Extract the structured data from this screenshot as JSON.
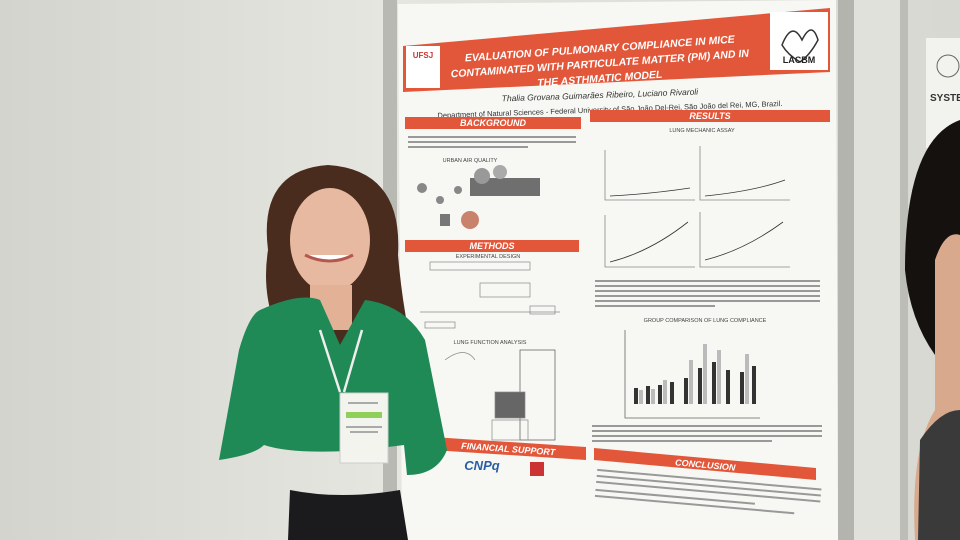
{
  "poster": {
    "title_lines": [
      "EVALUATION OF PULMONARY COMPLIANCE IN MICE",
      "CONTAMINATED WITH PARTICULATE MATTER (PM) AND IN",
      "THE ASTHMATIC MODEL"
    ],
    "authors": "Thalia Grovana Guimarães Ribeiro, Luciano Rivaroli",
    "affiliation": "Department of Natural Sciences - Federal University of São João Del-Rei, São João del Rei, MG, Brazil.",
    "logos": {
      "left": "UFSJ",
      "right": "LACBM"
    },
    "sections": {
      "background": "BACKGROUND",
      "methods": "METHODS",
      "financial_support": "FINANCIAL SUPPORT",
      "results": "RESULTS",
      "conclusion": "CONCLUSION"
    },
    "subheadings": [
      "LUNG MECHANIC ASSAY",
      "GROUP COMPARISON OF LUNG COMPLIANCE",
      "URBAN AIR QUALITY",
      "EXPERIMENTAL DESIGN",
      "LUNG FUNCTION ANALYSIS"
    ],
    "sponsor": "CNPq"
  },
  "background_poster": {
    "text": "SYSTE"
  }
}
